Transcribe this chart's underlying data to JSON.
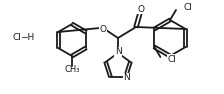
{
  "background_color": "#ffffff",
  "line_color": "#1a1a1a",
  "line_width": 1.3,
  "text_color": "#1a1a1a",
  "font_size": 6.5,
  "figsize": [
    2.24,
    0.94
  ],
  "dpi": 100,
  "xlim": [
    0,
    224
  ],
  "ylim": [
    0,
    94
  ]
}
